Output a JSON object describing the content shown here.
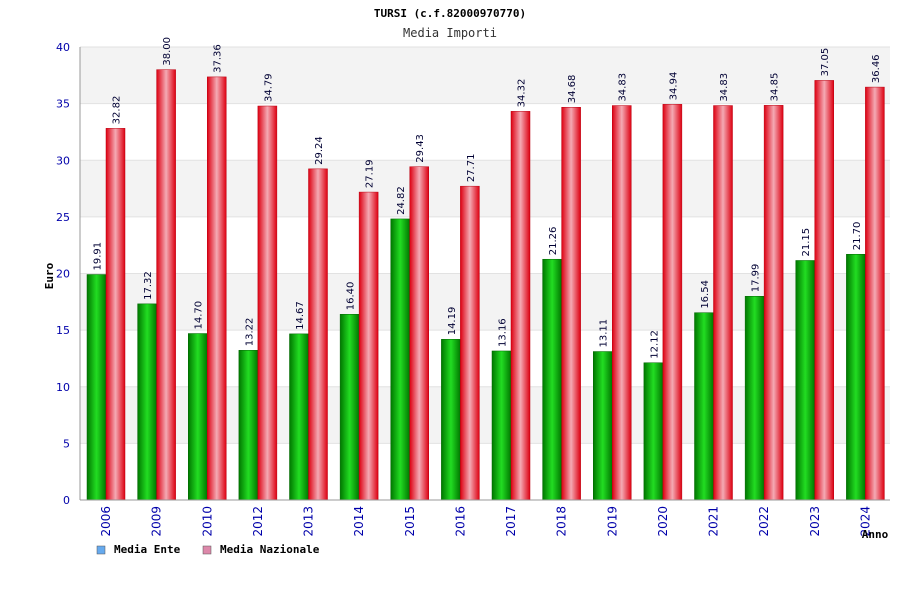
{
  "chart_data": {
    "type": "bar",
    "title": "TURSI (c.f.82000970770)",
    "subtitle": "Media Importi",
    "xlabel": "Anno",
    "ylabel": "Euro",
    "ylim": [
      0,
      40
    ],
    "yticks": [
      0,
      5,
      10,
      15,
      20,
      25,
      30,
      35,
      40
    ],
    "grid": "horizontal bands",
    "legend_position": "bottom-left",
    "categories": [
      "2006",
      "2009",
      "2010",
      "2012",
      "2013",
      "2014",
      "2015",
      "2016",
      "2017",
      "2018",
      "2019",
      "2020",
      "2021",
      "2022",
      "2023",
      "2024"
    ],
    "series": [
      {
        "name": "Media Ente",
        "color": "#00bb00",
        "legend_color": "#66aaee",
        "values": [
          19.91,
          17.32,
          14.7,
          13.22,
          14.67,
          16.4,
          24.82,
          14.19,
          13.16,
          21.26,
          13.11,
          12.12,
          16.54,
          17.99,
          21.15,
          21.7
        ],
        "labels": [
          "19.91",
          "17.32",
          "14.70",
          "13.22",
          "14.67",
          "16.40",
          "24.82",
          "14.19",
          "13.16",
          "21.26",
          "13.11",
          "12.12",
          "16.54",
          "17.99",
          "21.15",
          "21.70"
        ]
      },
      {
        "name": "Media Nazionale",
        "color": "#ee1122",
        "legend_color": "#dd88aa",
        "values": [
          32.82,
          38.0,
          37.36,
          34.79,
          29.24,
          27.19,
          29.43,
          27.71,
          34.32,
          34.68,
          34.83,
          34.94,
          34.83,
          34.85,
          37.05,
          36.46
        ],
        "labels": [
          "32.82",
          "38.00",
          "37.36",
          "34.79",
          "29.24",
          "27.19",
          "29.43",
          "27.71",
          "34.32",
          "34.68",
          "34.83",
          "34.94",
          "34.83",
          "34.85",
          "37.05",
          "36.46"
        ]
      }
    ]
  }
}
